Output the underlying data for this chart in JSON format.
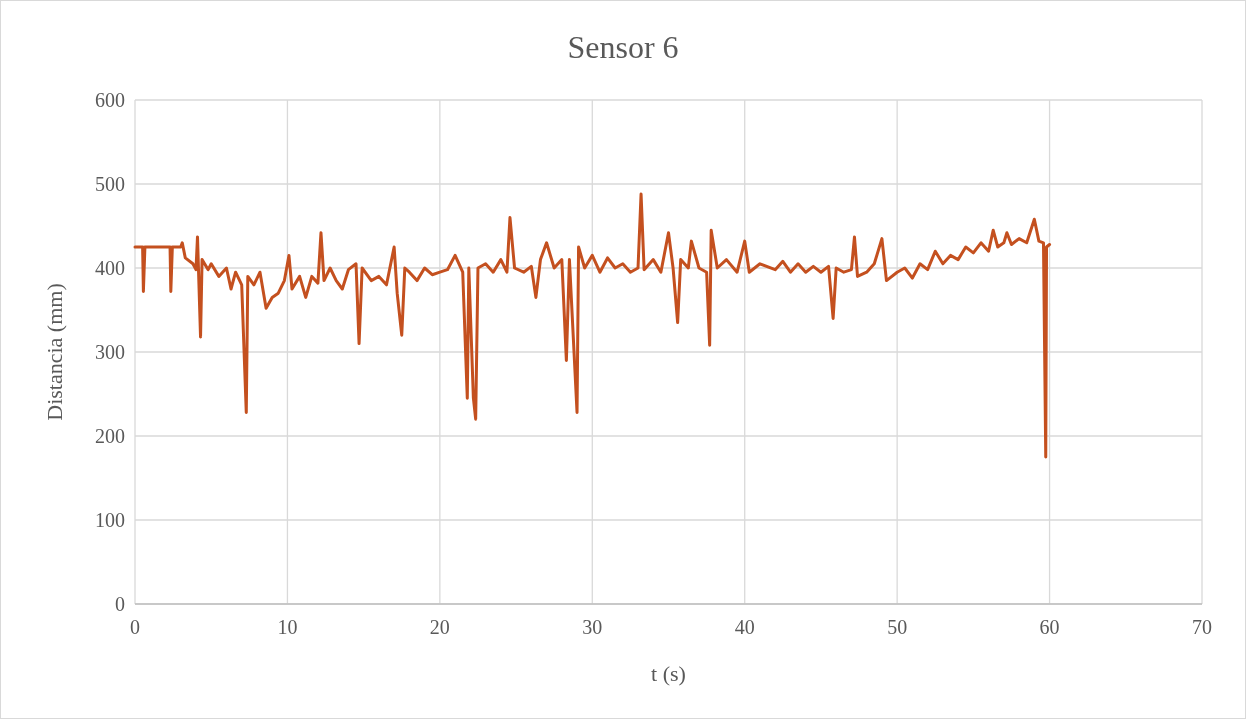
{
  "chart_data": {
    "type": "line",
    "title": "Sensor 6",
    "xlabel": "t (s)",
    "ylabel": "Distancia (mm)",
    "xlim": [
      0,
      70
    ],
    "xticks": [
      0,
      10,
      20,
      30,
      40,
      50,
      60,
      70
    ],
    "ylim": [
      0,
      600
    ],
    "yticks": [
      0,
      100,
      200,
      300,
      400,
      500,
      600
    ],
    "grid": true,
    "marker": "none",
    "line_style": "solid",
    "series": [
      {
        "color": "#c4501f",
        "x": [
          0,
          0.5,
          0.55,
          0.65,
          2.3,
          2.35,
          2.45,
          3.0,
          3.1,
          3.3,
          3.8,
          4.0,
          4.1,
          4.3,
          4.4,
          4.8,
          5.0,
          5.5,
          6.0,
          6.3,
          6.6,
          7.0,
          7.3,
          7.4,
          7.8,
          8.2,
          8.6,
          9.0,
          9.4,
          9.8,
          10.1,
          10.3,
          10.8,
          11.2,
          11.6,
          12.0,
          12.2,
          12.4,
          12.8,
          13.2,
          13.6,
          14.0,
          14.5,
          14.7,
          14.9,
          15.5,
          16.0,
          16.5,
          17.0,
          17.2,
          17.5,
          17.7,
          18.0,
          18.5,
          19.0,
          19.5,
          20.0,
          20.5,
          21.0,
          21.5,
          21.8,
          21.9,
          22.2,
          22.35,
          22.5,
          23.0,
          23.5,
          24.0,
          24.4,
          24.6,
          24.9,
          25.5,
          26.0,
          26.3,
          26.6,
          27.0,
          27.5,
          28.0,
          28.3,
          28.5,
          29.0,
          29.1,
          29.5,
          30.0,
          30.5,
          31.0,
          31.5,
          32.0,
          32.5,
          33.0,
          33.2,
          33.4,
          34.0,
          34.5,
          35.0,
          35.3,
          35.6,
          35.8,
          36.3,
          36.5,
          37.0,
          37.5,
          37.7,
          37.8,
          38.2,
          38.8,
          39.5,
          40.0,
          40.3,
          41.0,
          42.0,
          42.5,
          43.0,
          43.5,
          44.0,
          44.5,
          45.0,
          45.5,
          45.8,
          46.0,
          46.5,
          47.0,
          47.2,
          47.4,
          48.0,
          48.5,
          49.0,
          49.3,
          50.0,
          50.5,
          51.0,
          51.5,
          52.0,
          52.5,
          53.0,
          53.5,
          54.0,
          54.5,
          55.0,
          55.5,
          56.0,
          56.3,
          56.6,
          57.0,
          57.2,
          57.5,
          58.0,
          58.5,
          59.0,
          59.3,
          59.6,
          59.75,
          59.8,
          60.0
        ],
        "values": [
          425,
          425,
          372,
          425,
          425,
          372,
          425,
          425,
          430,
          412,
          405,
          398,
          437,
          318,
          410,
          398,
          405,
          390,
          400,
          375,
          395,
          380,
          228,
          390,
          380,
          395,
          352,
          365,
          370,
          385,
          415,
          375,
          390,
          365,
          390,
          382,
          442,
          385,
          400,
          385,
          375,
          398,
          405,
          310,
          400,
          385,
          390,
          380,
          425,
          370,
          320,
          400,
          395,
          385,
          400,
          392,
          395,
          398,
          415,
          395,
          245,
          400,
          245,
          220,
          400,
          405,
          395,
          410,
          395,
          460,
          400,
          395,
          402,
          365,
          410,
          430,
          400,
          410,
          290,
          410,
          228,
          425,
          400,
          415,
          395,
          412,
          400,
          405,
          395,
          400,
          488,
          398,
          410,
          395,
          442,
          400,
          335,
          410,
          400,
          432,
          400,
          395,
          308,
          445,
          400,
          410,
          395,
          432,
          395,
          405,
          398,
          408,
          395,
          405,
          395,
          402,
          395,
          402,
          340,
          400,
          395,
          398,
          437,
          390,
          395,
          405,
          435,
          385,
          395,
          400,
          388,
          405,
          398,
          420,
          405,
          415,
          410,
          425,
          418,
          430,
          420,
          445,
          425,
          430,
          442,
          428,
          435,
          430,
          458,
          432,
          430,
          175,
          425,
          428
        ]
      }
    ]
  }
}
